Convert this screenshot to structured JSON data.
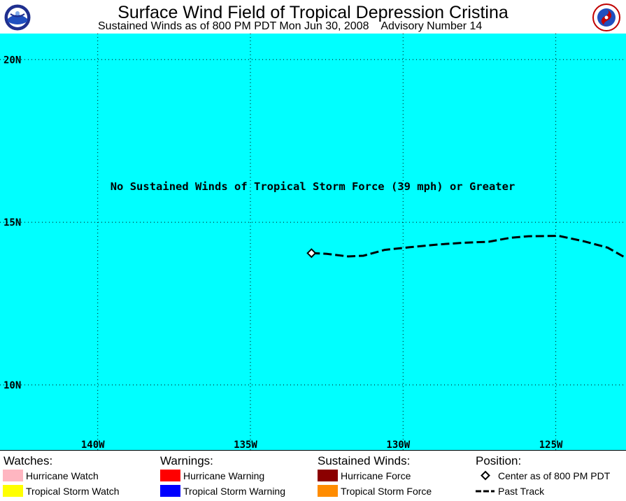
{
  "header": {
    "title": "Surface Wind Field of Tropical Depression Cristina",
    "subtitle": "Sustained Winds as of 800 PM PDT Mon Jun 30, 2008    Advisory Number 14",
    "logos": [
      "noaa-logo",
      "nws-logo"
    ]
  },
  "map": {
    "background_color": "#00ffff",
    "lon_range": [
      -143.2,
      -122.7
    ],
    "lat_range": [
      8.0,
      20.8
    ],
    "lat_labels": [
      {
        "lat": 20,
        "text": "20N"
      },
      {
        "lat": 15,
        "text": "15N"
      },
      {
        "lat": 10,
        "text": "10N"
      }
    ],
    "lon_labels": [
      {
        "lon": -140,
        "text": "140W"
      },
      {
        "lon": -135,
        "text": "135W"
      },
      {
        "lon": -130,
        "text": "130W"
      },
      {
        "lon": -125,
        "text": "125W"
      }
    ],
    "notice": "No Sustained Winds of Tropical Storm Force (39 mph) or Greater",
    "center": {
      "lon": -133.0,
      "lat": 14.05
    },
    "past_track": [
      [
        -133.0,
        14.05
      ],
      [
        -132.5,
        14.03
      ],
      [
        -131.8,
        13.95
      ],
      [
        -131.3,
        13.97
      ],
      [
        -130.6,
        14.15
      ],
      [
        -129.8,
        14.23
      ],
      [
        -128.8,
        14.32
      ],
      [
        -128.0,
        14.37
      ],
      [
        -127.2,
        14.4
      ],
      [
        -126.5,
        14.52
      ],
      [
        -125.9,
        14.57
      ],
      [
        -124.9,
        14.58
      ],
      [
        -124.1,
        14.42
      ],
      [
        -123.3,
        14.22
      ],
      [
        -122.7,
        13.9
      ]
    ]
  },
  "legend": {
    "watches": {
      "title": "Watches:",
      "items": [
        {
          "label": "Hurricane Watch",
          "color": "#ffb6c1"
        },
        {
          "label": "Tropical Storm Watch",
          "color": "#ffff00"
        }
      ]
    },
    "warnings": {
      "title": "Warnings:",
      "items": [
        {
          "label": "Hurricane Warning",
          "color": "#ff0000"
        },
        {
          "label": "Tropical Storm Warning",
          "color": "#0000ff"
        }
      ]
    },
    "sustained": {
      "title": "Sustained Winds:",
      "items": [
        {
          "label": "Hurricane Force",
          "color": "#8b0000"
        },
        {
          "label": "Tropical Storm Force",
          "color": "#ff8c00"
        }
      ]
    },
    "position": {
      "title": "Position:",
      "items": [
        {
          "label": "Center as of 800 PM PDT",
          "icon": "diamond-icon"
        },
        {
          "label": "Past Track",
          "icon": "dashed-line-icon"
        }
      ]
    }
  }
}
